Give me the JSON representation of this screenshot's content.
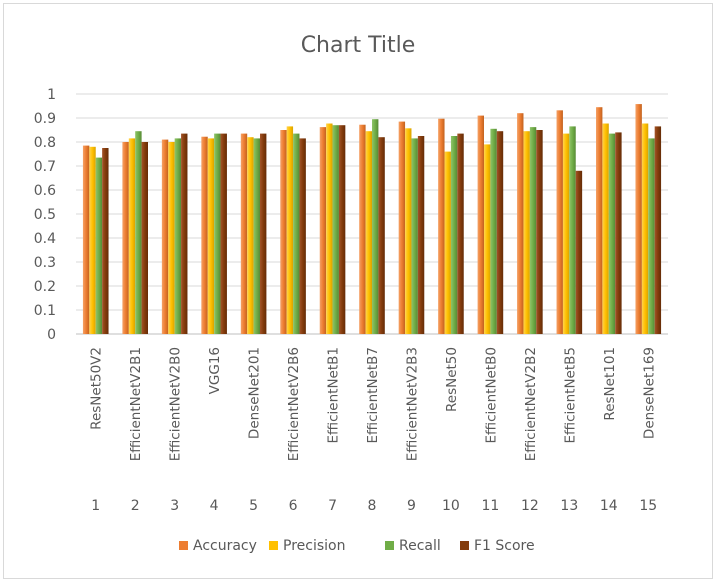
{
  "chart_data": {
    "type": "bar",
    "title": "Chart Title",
    "xlabel": "",
    "ylabel": "",
    "ylim": [
      0,
      1
    ],
    "yticks": [
      "0",
      "0.1",
      "0.2",
      "0.3",
      "0.4",
      "0.5",
      "0.6",
      "0.7",
      "0.8",
      "0.9",
      "1"
    ],
    "grid": "horizontal",
    "legend_position": "bottom",
    "categories": [
      "ResNet50V2",
      "EfficientNetV2B1",
      "EfficientNetV2B0",
      "VGG16",
      "DenseNet201",
      "EfficientNetV2B6",
      "EfficientNetB1",
      "EfficientNetB7",
      "EfficientNetV2B3",
      "ResNet50",
      "EfficientNetB0",
      "EfficientNetV2B2",
      "EfficientNetB5",
      "ResNet101",
      "DenseNet169"
    ],
    "indices": [
      "1",
      "2",
      "3",
      "4",
      "5",
      "6",
      "7",
      "8",
      "9",
      "10",
      "11",
      "12",
      "13",
      "14",
      "15"
    ],
    "series": [
      {
        "name": "Accuracy",
        "color": "#ed7d31",
        "values": [
          0.785,
          0.8,
          0.81,
          0.822,
          0.835,
          0.85,
          0.862,
          0.872,
          0.885,
          0.897,
          0.91,
          0.92,
          0.932,
          0.945,
          0.958
        ]
      },
      {
        "name": "Precision",
        "color": "#ffc000",
        "values": [
          0.78,
          0.815,
          0.8,
          0.815,
          0.82,
          0.865,
          0.877,
          0.845,
          0.857,
          0.76,
          0.79,
          0.845,
          0.835,
          0.877,
          0.877
        ]
      },
      {
        "name": "Recall",
        "color": "#70ad47",
        "values": [
          0.735,
          0.845,
          0.815,
          0.835,
          0.815,
          0.835,
          0.87,
          0.895,
          0.815,
          0.825,
          0.855,
          0.862,
          0.865,
          0.835,
          0.815
        ]
      },
      {
        "name": "F1 Score",
        "color": "#843c0c",
        "values": [
          0.775,
          0.8,
          0.835,
          0.835,
          0.835,
          0.815,
          0.87,
          0.82,
          0.825,
          0.835,
          0.845,
          0.85,
          0.68,
          0.84,
          0.865
        ]
      }
    ]
  }
}
